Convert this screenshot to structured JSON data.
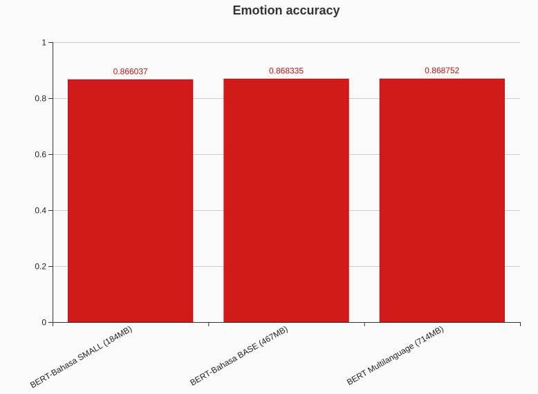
{
  "chart_data": {
    "type": "bar",
    "title": "Emotion accuracy",
    "xlabel": "",
    "ylabel": "",
    "categories": [
      "BERT-Bahasa SMALL (184MB)",
      "BERT-Bahasa BASE (467MB)",
      "BERT Multilanguage (714MB)"
    ],
    "values": [
      0.866037,
      0.868335,
      0.868752
    ],
    "data_labels": [
      "0.866037",
      "0.868335",
      "0.868752"
    ],
    "ylim": [
      0,
      1
    ],
    "yticks": [
      0,
      0.2,
      0.4,
      0.6,
      0.8,
      1
    ],
    "ytick_labels": [
      "0",
      "0.2",
      "0.4",
      "0.6",
      "0.8",
      "1"
    ],
    "grid": true,
    "legend": "none",
    "colors": {
      "bar": "#d11b1b",
      "bar_stroke": "#b91616",
      "data_label": "#c41414",
      "background": "#fafafa"
    }
  }
}
